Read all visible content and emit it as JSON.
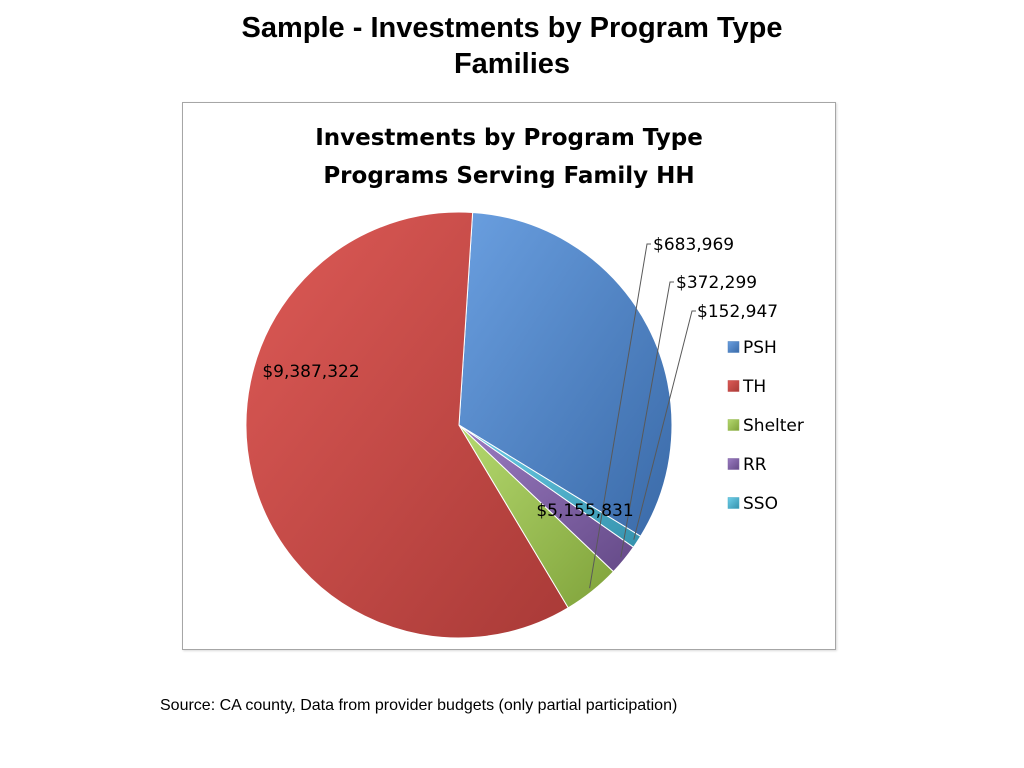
{
  "slide": {
    "title_line1": "Sample - Investments by Program Type",
    "title_line2": "Families",
    "source": "Source: CA county, Data from provider budgets (only partial participation)"
  },
  "chart_data": {
    "type": "pie",
    "title_lines": [
      "Investments by Program Type",
      "Programs Serving Family HH"
    ],
    "slices": [
      {
        "name": "PSH",
        "value": 5155831,
        "label": "$5,155,831",
        "color": "#4a7ebb"
      },
      {
        "name": "TH",
        "value": 9387322,
        "label": "$9,387,322",
        "color": "#be4b48"
      },
      {
        "name": "Shelter",
        "value": 683969,
        "label": "$683,969",
        "color": "#98b954"
      },
      {
        "name": "RR",
        "value": 372299,
        "label": "$372,299",
        "color": "#7d60a0"
      },
      {
        "name": "SSO",
        "value": 152947,
        "label": "$152,947",
        "color": "#46aac5"
      }
    ],
    "legend_position": "right"
  }
}
